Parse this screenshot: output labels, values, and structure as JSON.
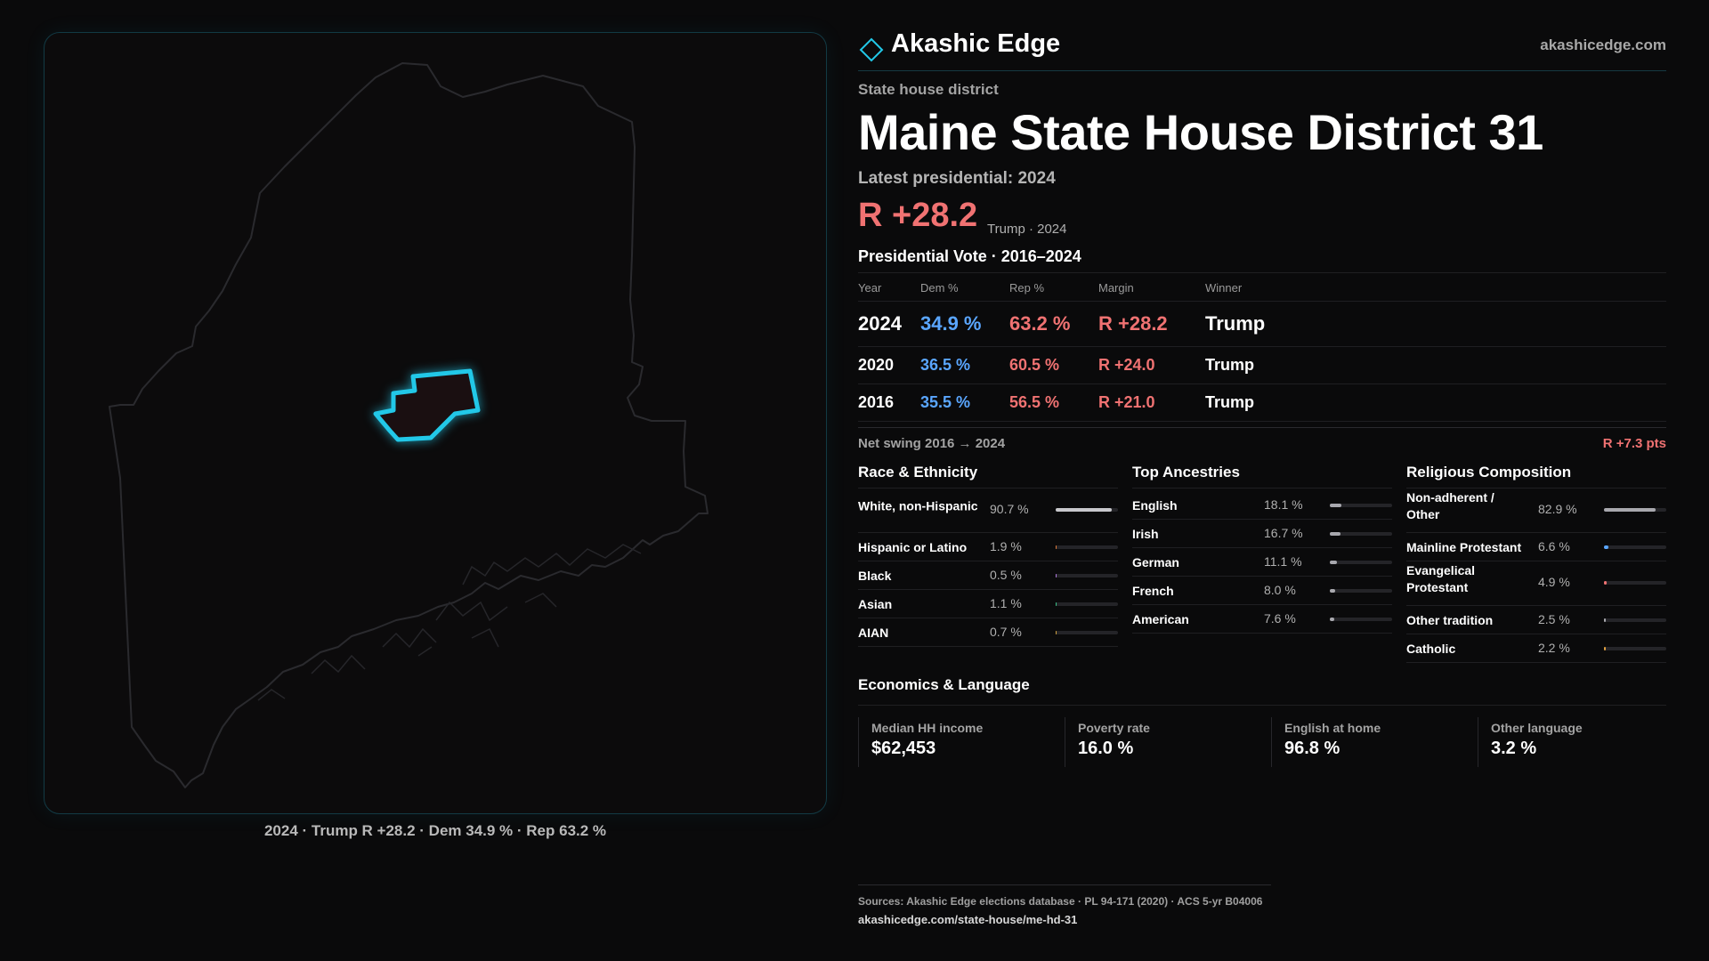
{
  "map": {
    "caption": "2024 · Trump R +28.2 · Dem 34.9 % · Rep 63.2 %",
    "outline_color": "#2a2a2e",
    "highlight_color": "#22c8e8"
  },
  "brand": {
    "name": "Akashic Edge",
    "url": "akashicedge.com"
  },
  "header": {
    "kicker": "State house district",
    "title": "Maine State House District 31",
    "latest": "Latest presidential: 2024",
    "margin": "R +28.2",
    "margin_sub": "Trump · 2024"
  },
  "presidential": {
    "title": "Presidential Vote · 2016–2024",
    "columns": [
      "Year",
      "Dem %",
      "Rep %",
      "Margin",
      "Winner"
    ],
    "rows": [
      {
        "year": "2024",
        "dem": "34.9 %",
        "rep": "63.2 %",
        "margin": "R +28.2",
        "winner": "Trump"
      },
      {
        "year": "2020",
        "dem": "36.5 %",
        "rep": "60.5 %",
        "margin": "R +24.0",
        "winner": "Trump"
      },
      {
        "year": "2016",
        "dem": "35.5 %",
        "rep": "56.5 %",
        "margin": "R +21.0",
        "winner": "Trump"
      }
    ],
    "swing_label": "Net swing 2016 → 2024",
    "swing_value": "R +7.3 pts"
  },
  "race": {
    "title": "Race & Ethnicity",
    "items": [
      {
        "label": "White, non-Hispanic",
        "pct": "90.7 %",
        "value": 90.7,
        "color": "#c8c8cc"
      },
      {
        "label": "Hispanic or Latino",
        "pct": "1.9 %",
        "value": 1.9,
        "color": "#e07b3a"
      },
      {
        "label": "Black",
        "pct": "0.5 %",
        "value": 0.5,
        "color": "#b07be0"
      },
      {
        "label": "Asian",
        "pct": "1.1 %",
        "value": 1.1,
        "color": "#3ac28a"
      },
      {
        "label": "AIAN",
        "pct": "0.7 %",
        "value": 0.7,
        "color": "#d0a040"
      }
    ]
  },
  "ancestry": {
    "title": "Top Ancestries",
    "items": [
      {
        "label": "English",
        "pct": "18.1 %",
        "value": 18.1,
        "color": "#a8a8ae"
      },
      {
        "label": "Irish",
        "pct": "16.7 %",
        "value": 16.7,
        "color": "#a8a8ae"
      },
      {
        "label": "German",
        "pct": "11.1 %",
        "value": 11.1,
        "color": "#a8a8ae"
      },
      {
        "label": "French",
        "pct": "8.0 %",
        "value": 8.0,
        "color": "#a8a8ae"
      },
      {
        "label": "American",
        "pct": "7.6 %",
        "value": 7.6,
        "color": "#a8a8ae"
      }
    ]
  },
  "religion": {
    "title": "Religious Composition",
    "items": [
      {
        "label": "Non-adherent / Other",
        "pct": "82.9 %",
        "value": 82.9,
        "color": "#a8a8ae"
      },
      {
        "label": "Mainline Protestant",
        "pct": "6.6 %",
        "value": 6.6,
        "color": "#5aa6ff"
      },
      {
        "label": "Evangelical Protestant",
        "pct": "4.9 %",
        "value": 4.9,
        "color": "#f07272"
      },
      {
        "label": "Other tradition",
        "pct": "2.5 %",
        "value": 2.5,
        "color": "#a8a8ae"
      },
      {
        "label": "Catholic",
        "pct": "2.2 %",
        "value": 2.2,
        "color": "#e0a040"
      }
    ]
  },
  "economics": {
    "title": "Economics & Language",
    "items": [
      {
        "label": "Median HH income",
        "value": "$62,453"
      },
      {
        "label": "Poverty rate",
        "value": "16.0 %"
      },
      {
        "label": "English at home",
        "value": "96.8 %"
      },
      {
        "label": "Other language",
        "value": "3.2 %"
      }
    ]
  },
  "footer": {
    "sources": "Sources: Akashic Edge elections database · PL 94-171 (2020) · ACS 5-yr B04006",
    "link": "akashicedge.com/state-house/me-hd-31"
  }
}
